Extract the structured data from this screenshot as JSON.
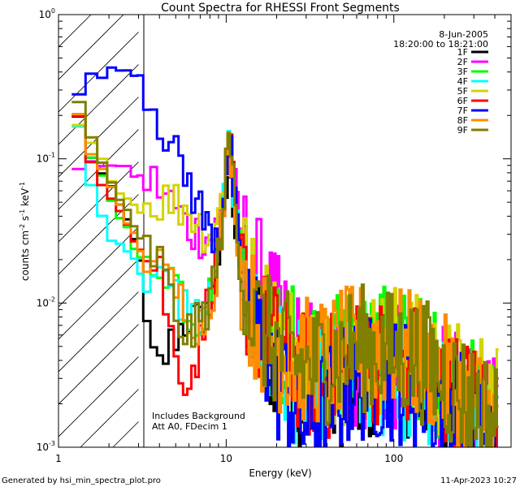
{
  "footer": {
    "generated_by": "Generated by hsi_min_spectra_plot.pro",
    "timestamp": "11-Apr-2023 10:27"
  },
  "chart_data": {
    "type": "line",
    "title": "Count Spectra for RHESSI Front Segments",
    "xlabel": "Energy (keV)",
    "ylabel_parts": [
      "counts cm",
      "-2",
      " s",
      "-1",
      " keV",
      "-1"
    ],
    "xscale": "log",
    "yscale": "log",
    "xlim": [
      1,
      500
    ],
    "ylim": [
      0.001,
      1
    ],
    "x_ticks": [
      {
        "value": 1,
        "label": "1"
      },
      {
        "value": 10,
        "label": "10"
      },
      {
        "value": 100,
        "label": "100"
      }
    ],
    "y_ticks": [
      {
        "value": 0.001,
        "base": "10",
        "exp": "-3"
      },
      {
        "value": 0.01,
        "base": "10",
        "exp": "-2"
      },
      {
        "value": 0.1,
        "base": "10",
        "exp": "-1"
      },
      {
        "value": 1,
        "base": "10",
        "exp": "0"
      }
    ],
    "date": "8-Jun-2005",
    "time_range": "18:20:00 to 18:21:00",
    "annotations": [
      "Includes Background",
      "Att A0, FDecim 1"
    ],
    "hatched_region": {
      "x_from": 1,
      "x_to": 3,
      "description": "diagonally hatched low-energy region with vertical line at 3 keV"
    },
    "legend_position": "top-right",
    "series": [
      {
        "name": "1F",
        "color": "#000000",
        "energy_keV": [
          1.2,
          1.4,
          1.6,
          2.0,
          2.5,
          3.0,
          3.5,
          4.0,
          5.0,
          6.0,
          7.0,
          8.0,
          9.0,
          10.5,
          12,
          14,
          17,
          20,
          25,
          30,
          40,
          60,
          100,
          150,
          200,
          300,
          400
        ],
        "counts": [
          0.3,
          0.15,
          0.1,
          0.065,
          0.04,
          0.025,
          0.004,
          0.0035,
          0.006,
          0.008,
          0.007,
          0.012,
          0.02,
          0.09,
          0.02,
          0.008,
          0.005,
          0.004,
          0.003,
          0.0022,
          0.0023,
          0.0025,
          0.0035,
          0.003,
          0.002,
          0.0015,
          0.001
        ]
      },
      {
        "name": "2F",
        "color": "#ff00ff",
        "energy_keV": [
          1.2,
          1.4,
          1.6,
          2.0,
          2.5,
          3.0,
          3.5,
          4.0,
          5.0,
          6.0,
          7.0,
          8.0,
          9.0,
          10.5,
          12,
          14,
          17,
          20,
          25,
          30,
          40,
          60,
          100,
          150,
          200,
          300,
          400
        ],
        "counts": [
          0.09,
          0.085,
          0.09,
          0.095,
          0.085,
          0.075,
          0.07,
          0.065,
          0.045,
          0.033,
          0.03,
          0.028,
          0.035,
          0.16,
          0.03,
          0.02,
          0.012,
          0.008,
          0.005,
          0.004,
          0.0035,
          0.0035,
          0.0035,
          0.003,
          0.0025,
          0.002,
          0.0015
        ]
      },
      {
        "name": "3F",
        "color": "#00ff00",
        "energy_keV": [
          1.2,
          1.4,
          1.6,
          2.0,
          2.5,
          3.0,
          3.5,
          4.0,
          5.0,
          6.0,
          7.0,
          8.0,
          9.0,
          10.5,
          12,
          14,
          17,
          20,
          25,
          30,
          40,
          60,
          100,
          150,
          200,
          300,
          400
        ],
        "counts": [
          0.28,
          0.17,
          0.1,
          0.06,
          0.035,
          0.02,
          0.018,
          0.02,
          0.015,
          0.009,
          0.008,
          0.011,
          0.02,
          0.17,
          0.025,
          0.01,
          0.007,
          0.005,
          0.005,
          0.004,
          0.004,
          0.005,
          0.005,
          0.004,
          0.003,
          0.002,
          0.0015
        ]
      },
      {
        "name": "4F",
        "color": "#00ffff",
        "energy_keV": [
          1.2,
          1.4,
          1.6,
          2.0,
          2.5,
          3.0,
          3.5,
          4.0,
          5.0,
          6.0,
          7.0,
          8.0,
          9.0,
          10.5,
          12,
          14,
          17,
          20,
          25,
          30,
          40,
          60,
          100,
          150,
          200,
          300,
          400
        ],
        "counts": [
          0.25,
          0.13,
          0.06,
          0.03,
          0.025,
          0.017,
          0.015,
          0.014,
          0.011,
          0.009,
          0.008,
          0.01,
          0.018,
          0.14,
          0.02,
          0.008,
          0.005,
          0.004,
          0.003,
          0.0025,
          0.0025,
          0.003,
          0.003,
          0.0025,
          0.002,
          0.0015,
          0.001
        ]
      },
      {
        "name": "5F",
        "color": "#d4d400",
        "energy_keV": [
          1.2,
          1.4,
          1.6,
          2.0,
          2.5,
          3.0,
          3.5,
          4.0,
          5.0,
          6.0,
          7.0,
          8.0,
          9.0,
          10.5,
          12,
          14,
          17,
          20,
          25,
          30,
          40,
          60,
          100,
          150,
          200,
          300,
          400
        ],
        "counts": [
          0.18,
          0.16,
          0.12,
          0.08,
          0.055,
          0.045,
          0.048,
          0.052,
          0.05,
          0.045,
          0.035,
          0.03,
          0.038,
          0.16,
          0.025,
          0.012,
          0.008,
          0.006,
          0.005,
          0.004,
          0.004,
          0.004,
          0.005,
          0.004,
          0.003,
          0.0025,
          0.002
        ]
      },
      {
        "name": "6F",
        "color": "#ff0000",
        "energy_keV": [
          1.2,
          1.4,
          1.6,
          2.0,
          2.5,
          3.0,
          3.5,
          4.0,
          5.0,
          6.0,
          7.0,
          8.0,
          9.0,
          10.5,
          12,
          14,
          17,
          20,
          25,
          30,
          40,
          60,
          100,
          150,
          200,
          300,
          400
        ],
        "counts": [
          0.28,
          0.16,
          0.09,
          0.06,
          0.04,
          0.024,
          0.02,
          0.018,
          0.004,
          0.003,
          0.005,
          0.012,
          0.02,
          0.13,
          0.02,
          0.009,
          0.006,
          0.005,
          0.004,
          0.003,
          0.003,
          0.004,
          0.004,
          0.0035,
          0.0025,
          0.002,
          0.0015
        ]
      },
      {
        "name": "7F",
        "color": "#0000ff",
        "energy_keV": [
          1.2,
          1.4,
          1.6,
          2.0,
          2.5,
          3.0,
          3.5,
          4.0,
          5.0,
          6.0,
          7.0,
          8.0,
          9.0,
          10.5,
          12,
          14,
          17,
          20,
          25,
          30,
          40,
          60,
          100,
          150,
          200,
          300,
          400
        ],
        "counts": [
          0.26,
          0.3,
          0.38,
          0.4,
          0.42,
          0.4,
          0.28,
          0.2,
          0.1,
          0.07,
          0.045,
          0.03,
          0.035,
          0.13,
          0.02,
          0.008,
          0.005,
          0.003,
          0.002,
          0.0015,
          0.002,
          0.003,
          0.003,
          0.0025,
          0.002,
          0.0015,
          0.001
        ]
      },
      {
        "name": "8F",
        "color": "#ff8c00",
        "energy_keV": [
          1.2,
          1.4,
          1.6,
          2.0,
          2.5,
          3.0,
          3.5,
          4.0,
          5.0,
          6.0,
          7.0,
          8.0,
          9.0,
          10.5,
          12,
          14,
          17,
          20,
          25,
          30,
          40,
          60,
          100,
          150,
          200,
          300,
          400
        ],
        "counts": [
          0.29,
          0.17,
          0.11,
          0.065,
          0.04,
          0.025,
          0.02,
          0.017,
          0.012,
          0.009,
          0.007,
          0.01,
          0.02,
          0.14,
          0.022,
          0.009,
          0.006,
          0.005,
          0.004,
          0.004,
          0.004,
          0.005,
          0.005,
          0.004,
          0.003,
          0.002,
          0.0015
        ]
      },
      {
        "name": "9F",
        "color": "#7f7f00",
        "energy_keV": [
          1.2,
          1.4,
          1.6,
          2.0,
          2.5,
          3.0,
          3.5,
          4.0,
          5.0,
          6.0,
          7.0,
          8.0,
          9.0,
          10.5,
          12,
          14,
          17,
          20,
          25,
          30,
          40,
          60,
          100,
          150,
          200,
          300,
          400
        ],
        "counts": [
          0.31,
          0.21,
          0.13,
          0.075,
          0.045,
          0.028,
          0.022,
          0.02,
          0.008,
          0.006,
          0.007,
          0.011,
          0.02,
          0.15,
          0.022,
          0.009,
          0.006,
          0.005,
          0.004,
          0.0035,
          0.004,
          0.005,
          0.0045,
          0.004,
          0.003,
          0.002,
          0.0015
        ]
      }
    ]
  }
}
